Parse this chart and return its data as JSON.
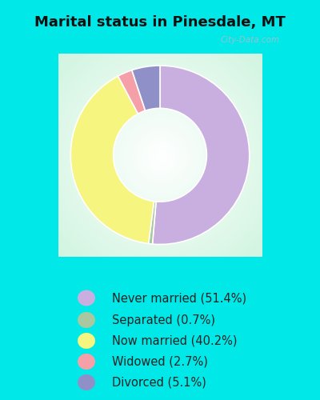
{
  "title": "Marital status in Pinesdale, MT",
  "slices": [
    51.4,
    0.7,
    40.2,
    2.7,
    5.1
  ],
  "labels": [
    "Never married (51.4%)",
    "Separated (0.7%)",
    "Now married (40.2%)",
    "Widowed (2.7%)",
    "Divorced (5.1%)"
  ],
  "colors": [
    "#c9aee0",
    "#a8c8a0",
    "#f5f580",
    "#f5a0a8",
    "#9090c8"
  ],
  "bg_cyan": "#00e8e8",
  "chart_bg": "#e8f5ee",
  "title_fontsize": 13,
  "legend_fontsize": 10.5,
  "watermark": "City-Data.com",
  "donut_width": 0.42,
  "startangle": 90,
  "slice_order": [
    0,
    1,
    2,
    3,
    4
  ]
}
